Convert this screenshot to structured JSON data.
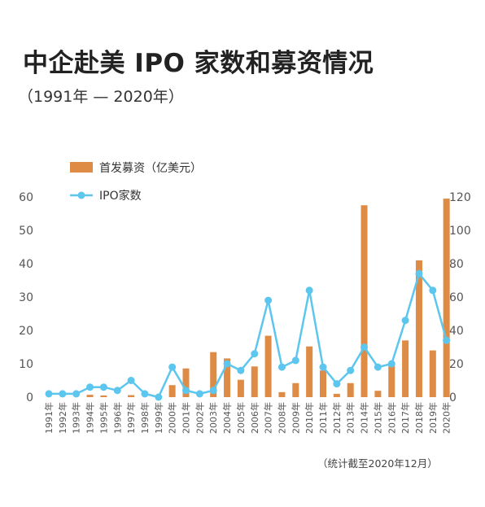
{
  "header": {
    "title": "中企赴美 IPO 家数和募资情况",
    "subtitle": "（1991年 — 2020年）"
  },
  "footnote": "（统计截至2020年12月）",
  "colors": {
    "bar": "#DE8B45",
    "line": "#5CC6EE",
    "axis_text": "#555555"
  },
  "chart_data": {
    "type": "bar+line",
    "categories": [
      "1991年",
      "1992年",
      "1993年",
      "1994年",
      "1995年",
      "1996年",
      "1997年",
      "1998年",
      "1999年",
      "2000年",
      "2001年",
      "2002年",
      "2003年",
      "2004年",
      "2005年",
      "2006年",
      "2007年",
      "2008年",
      "2009年",
      "2010年",
      "2011年",
      "2012年",
      "2013年",
      "2014年",
      "2015年",
      "2016年",
      "2017年",
      "2018年",
      "2019年",
      "2020年"
    ],
    "series": [
      {
        "name": "首发募资（亿美元）",
        "type": "bar",
        "axis": "left",
        "values": [
          0,
          0,
          0,
          0.7,
          0.5,
          0,
          0.6,
          0,
          0,
          3.6,
          8.6,
          0,
          13.5,
          11.6,
          5.2,
          9.2,
          18.4,
          1.5,
          4.2,
          15.2,
          8,
          1,
          4.2,
          57.5,
          1.9,
          10.3,
          17,
          41,
          14,
          59.5
        ]
      },
      {
        "name": "IPO家数",
        "type": "line",
        "axis": "right",
        "values": [
          2,
          2,
          2,
          6,
          6,
          4,
          10,
          2,
          0,
          18,
          4,
          2,
          4,
          20,
          16,
          26,
          58,
          18,
          22,
          64,
          18,
          8,
          16,
          30,
          18,
          20,
          46,
          74,
          64,
          34
        ]
      }
    ],
    "y_left": {
      "min": 0,
      "max": 60,
      "ticks": [
        0,
        10,
        20,
        30,
        40,
        50,
        60
      ]
    },
    "y_right": {
      "min": 0,
      "max": 120,
      "ticks": [
        0,
        20,
        40,
        60,
        80,
        100,
        120
      ]
    },
    "legend_position": "top-left",
    "grid": false
  }
}
